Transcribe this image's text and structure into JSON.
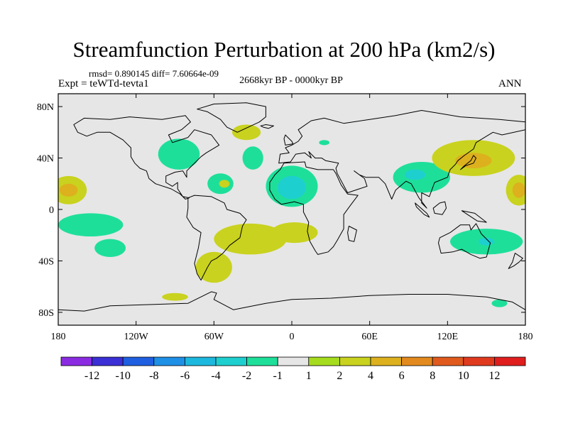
{
  "title": "Streamfunction Perturbation at 200 hPa (km2/s)",
  "stats_line": "rmsd= 0.890145 diff= 7.60664e-09",
  "period": "2668kyr BP - 0000kyr BP",
  "experiment": "Expt = teWTd-tevta1",
  "season": "ANN",
  "map": {
    "projection": "cylindrical equidistant",
    "lon_range": [
      -180,
      180
    ],
    "lat_range": [
      -90,
      90
    ],
    "lat_ticks": [
      {
        "value": 80,
        "label": "80N"
      },
      {
        "value": 40,
        "label": "40N"
      },
      {
        "value": 0,
        "label": "0"
      },
      {
        "value": -40,
        "label": "40S"
      },
      {
        "value": -80,
        "label": "80S"
      }
    ],
    "lon_ticks": [
      {
        "value": -180,
        "label": "180"
      },
      {
        "value": -120,
        "label": "120W"
      },
      {
        "value": -60,
        "label": "60W"
      },
      {
        "value": 0,
        "label": "0"
      },
      {
        "value": 60,
        "label": "60E"
      },
      {
        "value": 120,
        "label": "120E"
      },
      {
        "value": 180,
        "label": "180"
      }
    ],
    "background_color": "#e6e6e6",
    "coastline_color": "#000000"
  },
  "chart_data": {
    "type": "heatmap",
    "field": "streamfunction perturbation",
    "units": "km2/s",
    "level": "200 hPa",
    "colorbar": {
      "boundaries": [
        -12,
        -10,
        -8,
        -6,
        -4,
        -2,
        -1,
        1,
        2,
        4,
        6,
        8,
        10,
        12
      ],
      "labels": [
        "-12",
        "-10",
        "-8",
        "-6",
        "-4",
        "-2",
        "-1",
        "1",
        "2",
        "4",
        "6",
        "8",
        "10",
        "12"
      ],
      "colors": [
        "#8a2be2",
        "#3b2fd6",
        "#1f5fe0",
        "#1e90e6",
        "#1db8de",
        "#1ecfcf",
        "#1edf9a",
        "#e6e6e6",
        "#a6dc1e",
        "#c9d21e",
        "#ddb01e",
        "#e28a1e",
        "#e05a1e",
        "#e03a1e",
        "#e01e1e"
      ]
    },
    "anomalies": [
      {
        "lon": -172,
        "lat": 15,
        "bin": "2",
        "rx": 14,
        "ry": 11
      },
      {
        "lon": -172,
        "lat": 15,
        "bin": "4",
        "rx": 7,
        "ry": 5
      },
      {
        "lon": 175,
        "lat": 15,
        "bin": "2",
        "rx": 10,
        "ry": 12
      },
      {
        "lon": 175,
        "lat": 15,
        "bin": "4",
        "rx": 5,
        "ry": 6
      },
      {
        "lon": -155,
        "lat": -12,
        "bin": "-1",
        "rx": 25,
        "ry": 9
      },
      {
        "lon": -140,
        "lat": -30,
        "bin": "-1",
        "rx": 12,
        "ry": 7
      },
      {
        "lon": -87,
        "lat": 43,
        "bin": "-1",
        "rx": 16,
        "ry": 12
      },
      {
        "lon": -35,
        "lat": 60,
        "bin": "2",
        "rx": 11,
        "ry": 6
      },
      {
        "lon": -55,
        "lat": 20,
        "bin": "-1",
        "rx": 10,
        "ry": 8
      },
      {
        "lon": -52,
        "lat": 20,
        "bin": "2",
        "rx": 4,
        "ry": 3
      },
      {
        "lon": 0,
        "lat": 18,
        "bin": "-1",
        "rx": 20,
        "ry": 16
      },
      {
        "lon": 0,
        "lat": 17,
        "bin": "-2",
        "rx": 11,
        "ry": 9
      },
      {
        "lon": -30,
        "lat": 40,
        "bin": "-1",
        "rx": 8,
        "ry": 9
      },
      {
        "lon": -32,
        "lat": -23,
        "bin": "2",
        "rx": 28,
        "ry": 12
      },
      {
        "lon": 2,
        "lat": -18,
        "bin": "2",
        "rx": 18,
        "ry": 8
      },
      {
        "lon": -60,
        "lat": -45,
        "bin": "2",
        "rx": 14,
        "ry": 12
      },
      {
        "lon": -90,
        "lat": -68,
        "bin": "2",
        "rx": 10,
        "ry": 3
      },
      {
        "lon": 100,
        "lat": 25,
        "bin": "-1",
        "rx": 22,
        "ry": 12
      },
      {
        "lon": 95,
        "lat": 27,
        "bin": "-2",
        "rx": 8,
        "ry": 4
      },
      {
        "lon": 140,
        "lat": 40,
        "bin": "2",
        "rx": 32,
        "ry": 14
      },
      {
        "lon": 140,
        "lat": 38,
        "bin": "4",
        "rx": 14,
        "ry": 6
      },
      {
        "lon": 150,
        "lat": -25,
        "bin": "-1",
        "rx": 28,
        "ry": 10
      },
      {
        "lon": 150,
        "lat": -25,
        "bin": "-2",
        "rx": 6,
        "ry": 3
      },
      {
        "lon": 25,
        "lat": 52,
        "bin": "-1",
        "rx": 4,
        "ry": 2
      },
      {
        "lon": 160,
        "lat": -73,
        "bin": "-1",
        "rx": 6,
        "ry": 3
      }
    ]
  },
  "continents": [
    {
      "name": "North America",
      "points": [
        [
          -168,
          66
        ],
        [
          -160,
          71
        ],
        [
          -140,
          70
        ],
        [
          -125,
          72
        ],
        [
          -100,
          70
        ],
        [
          -82,
          73
        ],
        [
          -78,
          68
        ],
        [
          -85,
          62
        ],
        [
          -95,
          58
        ],
        [
          -92,
          52
        ],
        [
          -80,
          56
        ],
        [
          -75,
          62
        ],
        [
          -62,
          58
        ],
        [
          -56,
          50
        ],
        [
          -66,
          44
        ],
        [
          -70,
          41
        ],
        [
          -76,
          35
        ],
        [
          -81,
          30
        ],
        [
          -81,
          25
        ],
        [
          -84,
          30
        ],
        [
          -90,
          29
        ],
        [
          -97,
          26
        ],
        [
          -97,
          21
        ],
        [
          -92,
          18
        ],
        [
          -88,
          21
        ],
        [
          -88,
          16
        ],
        [
          -84,
          10
        ],
        [
          -79,
          9
        ],
        [
          -82,
          8
        ],
        [
          -86,
          12
        ],
        [
          -93,
          16
        ],
        [
          -105,
          20
        ],
        [
          -110,
          24
        ],
        [
          -112,
          30
        ],
        [
          -117,
          32
        ],
        [
          -121,
          36
        ],
        [
          -124,
          41
        ],
        [
          -124,
          48
        ],
        [
          -130,
          54
        ],
        [
          -140,
          60
        ],
        [
          -150,
          60
        ],
        [
          -158,
          57
        ],
        [
          -165,
          60
        ]
      ]
    },
    {
      "name": "Greenland",
      "points": [
        [
          -73,
          78
        ],
        [
          -60,
          82
        ],
        [
          -35,
          83
        ],
        [
          -20,
          80
        ],
        [
          -20,
          72
        ],
        [
          -25,
          68
        ],
        [
          -42,
          60
        ],
        [
          -50,
          64
        ],
        [
          -55,
          70
        ],
        [
          -65,
          76
        ]
      ]
    },
    {
      "name": "South America",
      "points": [
        [
          -80,
          9
        ],
        [
          -75,
          11
        ],
        [
          -62,
          10
        ],
        [
          -52,
          5
        ],
        [
          -50,
          0
        ],
        [
          -40,
          -3
        ],
        [
          -35,
          -8
        ],
        [
          -38,
          -13
        ],
        [
          -40,
          -22
        ],
        [
          -48,
          -28
        ],
        [
          -53,
          -34
        ],
        [
          -58,
          -38
        ],
        [
          -62,
          -40
        ],
        [
          -65,
          -45
        ],
        [
          -68,
          -51
        ],
        [
          -70,
          -55
        ],
        [
          -73,
          -50
        ],
        [
          -75,
          -42
        ],
        [
          -72,
          -30
        ],
        [
          -70,
          -18
        ],
        [
          -76,
          -14
        ],
        [
          -81,
          -6
        ],
        [
          -80,
          1
        ]
      ]
    },
    {
      "name": "Eurasia",
      "points": [
        [
          -10,
          36
        ],
        [
          -9,
          43
        ],
        [
          -2,
          44
        ],
        [
          -5,
          48
        ],
        [
          0,
          50
        ],
        [
          5,
          53
        ],
        [
          8,
          57
        ],
        [
          5,
          62
        ],
        [
          15,
          69
        ],
        [
          25,
          71
        ],
        [
          40,
          67
        ],
        [
          60,
          70
        ],
        [
          80,
          73
        ],
        [
          100,
          77
        ],
        [
          130,
          72
        ],
        [
          160,
          70
        ],
        [
          180,
          68
        ],
        [
          180,
          62
        ],
        [
          162,
          58
        ],
        [
          155,
          60
        ],
        [
          142,
          52
        ],
        [
          140,
          47
        ],
        [
          133,
          42
        ],
        [
          128,
          38
        ],
        [
          126,
          35
        ],
        [
          122,
          31
        ],
        [
          120,
          25
        ],
        [
          110,
          21
        ],
        [
          106,
          10
        ],
        [
          100,
          13
        ],
        [
          100,
          5
        ],
        [
          104,
          1
        ],
        [
          98,
          9
        ],
        [
          92,
          20
        ],
        [
          88,
          22
        ],
        [
          80,
          15
        ],
        [
          77,
          8
        ],
        [
          72,
          20
        ],
        [
          67,
          25
        ],
        [
          57,
          25
        ],
        [
          52,
          27
        ],
        [
          48,
          30
        ],
        [
          56,
          24
        ],
        [
          58,
          18
        ],
        [
          52,
          16
        ],
        [
          43,
          13
        ],
        [
          35,
          28
        ],
        [
          34,
          32
        ],
        [
          36,
          36
        ],
        [
          26,
          38
        ],
        [
          23,
          40
        ],
        [
          18,
          40
        ],
        [
          13,
          45
        ],
        [
          15,
          40
        ],
        [
          10,
          44
        ],
        [
          3,
          43
        ],
        [
          -1,
          37
        ]
      ]
    },
    {
      "name": "Africa",
      "points": [
        [
          -6,
          36
        ],
        [
          10,
          37
        ],
        [
          11,
          33
        ],
        [
          20,
          31
        ],
        [
          32,
          31
        ],
        [
          34,
          28
        ],
        [
          38,
          19
        ],
        [
          43,
          12
        ],
        [
          51,
          11
        ],
        [
          45,
          3
        ],
        [
          40,
          -4
        ],
        [
          40,
          -15
        ],
        [
          35,
          -24
        ],
        [
          32,
          -29
        ],
        [
          28,
          -33
        ],
        [
          20,
          -35
        ],
        [
          18,
          -32
        ],
        [
          14,
          -25
        ],
        [
          12,
          -17
        ],
        [
          13,
          -10
        ],
        [
          9,
          -2
        ],
        [
          9,
          4
        ],
        [
          2,
          6
        ],
        [
          -8,
          4
        ],
        [
          -13,
          8
        ],
        [
          -17,
          15
        ],
        [
          -17,
          21
        ],
        [
          -13,
          27
        ],
        [
          -9,
          31
        ]
      ]
    },
    {
      "name": "Madagascar",
      "points": [
        [
          44,
          -13
        ],
        [
          50,
          -16
        ],
        [
          48,
          -25
        ],
        [
          44,
          -24
        ],
        [
          43,
          -18
        ]
      ]
    },
    {
      "name": "Australia",
      "points": [
        [
          114,
          -22
        ],
        [
          122,
          -18
        ],
        [
          130,
          -12
        ],
        [
          137,
          -12
        ],
        [
          138,
          -16
        ],
        [
          142,
          -11
        ],
        [
          146,
          -19
        ],
        [
          153,
          -26
        ],
        [
          150,
          -37
        ],
        [
          145,
          -38
        ],
        [
          138,
          -35
        ],
        [
          131,
          -31
        ],
        [
          124,
          -33
        ],
        [
          115,
          -34
        ],
        [
          113,
          -26
        ]
      ]
    },
    {
      "name": "Antarctica",
      "points": [
        [
          -180,
          -78
        ],
        [
          -160,
          -79
        ],
        [
          -140,
          -75
        ],
        [
          -110,
          -74
        ],
        [
          -80,
          -73
        ],
        [
          -62,
          -64
        ],
        [
          -58,
          -65
        ],
        [
          -60,
          -70
        ],
        [
          -45,
          -78
        ],
        [
          -20,
          -73
        ],
        [
          0,
          -70
        ],
        [
          30,
          -69
        ],
        [
          60,
          -67
        ],
        [
          90,
          -66
        ],
        [
          120,
          -66
        ],
        [
          150,
          -68
        ],
        [
          170,
          -72
        ],
        [
          180,
          -78
        ],
        [
          180,
          -90
        ],
        [
          -180,
          -90
        ]
      ]
    },
    {
      "name": "Great Britain",
      "points": [
        [
          -5,
          50
        ],
        [
          1,
          51
        ],
        [
          0,
          53
        ],
        [
          -3,
          56
        ],
        [
          -5,
          58
        ],
        [
          -6,
          55
        ]
      ]
    },
    {
      "name": "Japan",
      "points": [
        [
          130,
          31
        ],
        [
          134,
          34
        ],
        [
          140,
          36
        ],
        [
          142,
          40
        ],
        [
          140,
          42
        ],
        [
          138,
          38
        ],
        [
          133,
          34
        ]
      ]
    },
    {
      "name": "New Zealand",
      "points": [
        [
          172,
          -34
        ],
        [
          178,
          -38
        ],
        [
          175,
          -41
        ],
        [
          171,
          -44
        ],
        [
          167,
          -46
        ],
        [
          170,
          -41
        ]
      ]
    },
    {
      "name": "Borneo",
      "points": [
        [
          109,
          1
        ],
        [
          114,
          5
        ],
        [
          118,
          6
        ],
        [
          119,
          1
        ],
        [
          116,
          -4
        ],
        [
          110,
          -3
        ]
      ]
    },
    {
      "name": "Sumatra",
      "points": [
        [
          95,
          5
        ],
        [
          104,
          -3
        ],
        [
          106,
          -6
        ],
        [
          102,
          -4
        ],
        [
          96,
          2
        ]
      ]
    },
    {
      "name": "New Guinea",
      "points": [
        [
          131,
          -1
        ],
        [
          141,
          -3
        ],
        [
          150,
          -10
        ],
        [
          143,
          -9
        ],
        [
          137,
          -5
        ]
      ]
    },
    {
      "name": "Iceland",
      "points": [
        [
          -24,
          65
        ],
        [
          -20,
          66
        ],
        [
          -14,
          65
        ],
        [
          -18,
          63
        ],
        [
          -22,
          64
        ]
      ]
    }
  ]
}
